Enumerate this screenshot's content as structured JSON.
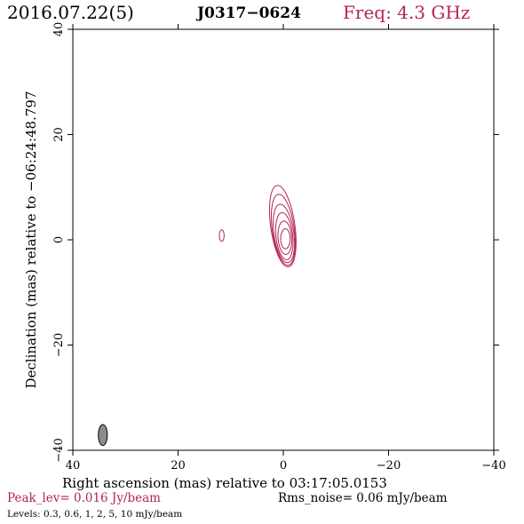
{
  "header": {
    "date": "2016.07.22(5)",
    "source": "J0317−0624",
    "frequency": "Freq: 4.3 GHz"
  },
  "footer": {
    "peak": "Peak_lev=  0.016 Jy/beam",
    "rms": "Rms_noise= 0.06 mJy/beam",
    "levels": "Levels: 0.3, 0.6,    1,    2,    5,   10 mJy/beam"
  },
  "colors": {
    "contour": "#b3254f",
    "beam": "#8c8c8c",
    "axis": "#000000"
  },
  "chart_data": {
    "type": "contour",
    "xlabel": "Right ascension (mas) relative to 03:17:05.0153",
    "ylabel": "Declination (mas) relative to −06:24:48.797",
    "xlim": [
      40,
      -40
    ],
    "ylim": [
      -40,
      40
    ],
    "xticks": [
      40,
      20,
      0,
      -20,
      -40
    ],
    "yticks": [
      -40,
      -20,
      0,
      20,
      40
    ],
    "xtick_labels": [
      "40",
      "20",
      "0",
      "−20",
      "−40"
    ],
    "ytick_labels": [
      "−40",
      "−20",
      "0",
      "20",
      "40"
    ],
    "levels_mJy": [
      0.3,
      0.6,
      1,
      2,
      5,
      10
    ],
    "peak_Jy_per_beam": 0.016,
    "rms_mJy_per_beam": 0.06,
    "contours": [
      {
        "level": 0.3,
        "center": [
          0.1,
          2.6
        ],
        "semi_major": 7.8,
        "semi_minor": 2.3,
        "pa_deg": -8
      },
      {
        "level": 0.6,
        "center": [
          0.0,
          1.9
        ],
        "semi_major": 6.8,
        "semi_minor": 2.1,
        "pa_deg": -8
      },
      {
        "level": 1,
        "center": [
          -0.1,
          1.2
        ],
        "semi_major": 5.6,
        "semi_minor": 1.9,
        "pa_deg": -8
      },
      {
        "level": 2,
        "center": [
          -0.2,
          0.7
        ],
        "semi_major": 4.5,
        "semi_minor": 1.6,
        "pa_deg": -6
      },
      {
        "level": 5,
        "center": [
          -0.3,
          0.4
        ],
        "semi_major": 3.2,
        "semi_minor": 1.3,
        "pa_deg": -4
      },
      {
        "level": 10,
        "center": [
          -0.4,
          0.2
        ],
        "semi_major": 1.9,
        "semi_minor": 0.9,
        "pa_deg": 0
      }
    ],
    "secondary_component": {
      "level": 0.3,
      "center": [
        11.7,
        0.8
      ],
      "semi_major": 1.1,
      "semi_minor": 0.45,
      "pa_deg": 0
    },
    "beam": {
      "center": [
        34.3,
        -37.1
      ],
      "semi_major": 2.0,
      "semi_minor": 0.85,
      "pa_deg": 0
    }
  }
}
